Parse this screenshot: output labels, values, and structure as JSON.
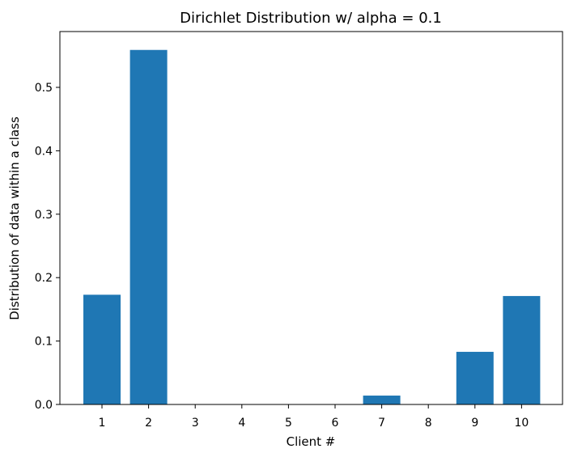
{
  "chart_data": {
    "type": "bar",
    "title": "Dirichlet Distribution w/ alpha = 0.1",
    "xlabel": "Client #",
    "ylabel": "Distribution of data within a class",
    "categories": [
      "1",
      "2",
      "3",
      "4",
      "5",
      "6",
      "7",
      "8",
      "9",
      "10"
    ],
    "values": [
      0.173,
      0.559,
      0.0,
      0.0,
      0.0,
      0.0,
      0.014,
      0.0,
      0.083,
      0.171
    ],
    "ylim": [
      0,
      0.588
    ],
    "yticks": [
      "0.0",
      "0.1",
      "0.2",
      "0.3",
      "0.4",
      "0.5"
    ],
    "grid": false,
    "bar_color": "#1f77b4"
  }
}
